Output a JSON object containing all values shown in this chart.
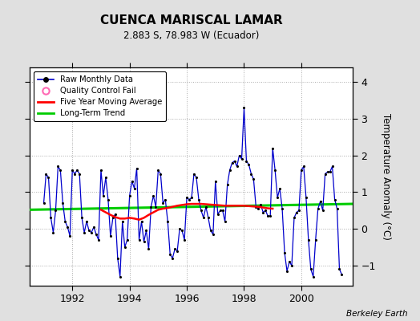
{
  "title": "CUENCA MARISCAL LAMAR",
  "subtitle": "2.883 S, 78.983 W (Ecuador)",
  "ylabel": "Temperature Anomaly (°C)",
  "credit": "Berkeley Earth",
  "bg_color": "#e0e0e0",
  "plot_bg_color": "#ffffff",
  "xlim": [
    1990.5,
    2001.8
  ],
  "ylim": [
    -1.55,
    4.4
  ],
  "yticks": [
    -1,
    0,
    1,
    2,
    3,
    4
  ],
  "xticks": [
    1992,
    1994,
    1996,
    1998,
    2000
  ],
  "raw_x": [
    1991.0,
    1991.083,
    1991.167,
    1991.25,
    1991.333,
    1991.417,
    1991.5,
    1991.583,
    1991.667,
    1991.75,
    1991.833,
    1991.917,
    1992.0,
    1992.083,
    1992.167,
    1992.25,
    1992.333,
    1992.417,
    1992.5,
    1992.583,
    1992.667,
    1992.75,
    1992.833,
    1992.917,
    1993.0,
    1993.083,
    1993.167,
    1993.25,
    1993.333,
    1993.417,
    1993.5,
    1993.583,
    1993.667,
    1993.75,
    1993.833,
    1993.917,
    1994.0,
    1994.083,
    1994.167,
    1994.25,
    1994.333,
    1994.417,
    1994.5,
    1994.583,
    1994.667,
    1994.75,
    1994.833,
    1994.917,
    1995.0,
    1995.083,
    1995.167,
    1995.25,
    1995.333,
    1995.417,
    1995.5,
    1995.583,
    1995.667,
    1995.75,
    1995.833,
    1995.917,
    1996.0,
    1996.083,
    1996.167,
    1996.25,
    1996.333,
    1996.417,
    1996.5,
    1996.583,
    1996.667,
    1996.75,
    1996.833,
    1996.917,
    1997.0,
    1997.083,
    1997.167,
    1997.25,
    1997.333,
    1997.417,
    1997.5,
    1997.583,
    1997.667,
    1997.75,
    1997.833,
    1997.917,
    1998.0,
    1998.083,
    1998.167,
    1998.25,
    1998.333,
    1998.417,
    1998.5,
    1998.583,
    1998.667,
    1998.75,
    1998.833,
    1998.917,
    1999.0,
    1999.083,
    1999.167,
    1999.25,
    1999.333,
    1999.417,
    1999.5,
    1999.583,
    1999.667,
    1999.75,
    1999.833,
    1999.917,
    2000.0,
    2000.083,
    2000.167,
    2000.25,
    2000.333,
    2000.417,
    2000.5,
    2000.583,
    2000.667,
    2000.75,
    2000.833,
    2000.917,
    2001.0,
    2001.083,
    2001.167,
    2001.25,
    2001.333,
    2001.417
  ],
  "raw_y": [
    0.7,
    1.5,
    1.4,
    0.3,
    -0.1,
    0.5,
    1.7,
    1.6,
    0.7,
    0.2,
    0.05,
    -0.2,
    1.6,
    1.5,
    1.6,
    1.5,
    0.3,
    -0.1,
    0.2,
    -0.05,
    -0.1,
    0.05,
    -0.15,
    -0.3,
    1.6,
    0.9,
    1.4,
    0.8,
    -0.2,
    0.3,
    0.4,
    -0.8,
    -1.3,
    0.2,
    -0.5,
    -0.3,
    0.9,
    1.3,
    1.1,
    1.65,
    -0.3,
    0.2,
    -0.35,
    -0.05,
    -0.55,
    0.6,
    0.9,
    0.6,
    1.6,
    1.5,
    0.7,
    0.8,
    0.2,
    -0.7,
    -0.8,
    -0.55,
    -0.6,
    0.0,
    -0.05,
    -0.3,
    0.85,
    0.8,
    0.85,
    1.5,
    1.4,
    0.8,
    0.5,
    0.3,
    0.6,
    0.3,
    -0.05,
    -0.15,
    1.3,
    0.4,
    0.5,
    0.5,
    0.2,
    1.2,
    1.6,
    1.8,
    1.85,
    1.7,
    2.0,
    1.9,
    3.3,
    1.85,
    1.75,
    1.5,
    1.35,
    0.6,
    0.55,
    0.65,
    0.45,
    0.5,
    0.35,
    0.35,
    2.2,
    1.6,
    0.85,
    1.1,
    0.55,
    -0.65,
    -1.15,
    -0.9,
    -1.0,
    0.3,
    0.45,
    0.5,
    1.6,
    1.7,
    0.85,
    -0.3,
    -1.1,
    -1.3,
    -0.3,
    0.55,
    0.75,
    0.5,
    1.5,
    1.55,
    1.55,
    1.7,
    0.8,
    0.55,
    -1.1,
    -1.25
  ],
  "ma_x": [
    1993.0,
    1993.167,
    1993.333,
    1993.5,
    1993.667,
    1993.833,
    1994.0,
    1994.167,
    1994.333,
    1994.5,
    1994.667,
    1994.833,
    1995.0,
    1995.167,
    1995.333,
    1995.5,
    1995.667,
    1995.833,
    1996.0,
    1996.167,
    1996.333,
    1996.5,
    1996.667,
    1996.833,
    1997.0,
    1997.167,
    1997.333,
    1997.5,
    1997.667,
    1997.833,
    1998.0,
    1998.167,
    1998.333,
    1998.5,
    1998.667,
    1998.833,
    1999.0
  ],
  "ma_y": [
    0.52,
    0.45,
    0.38,
    0.32,
    0.28,
    0.28,
    0.3,
    0.28,
    0.25,
    0.3,
    0.38,
    0.45,
    0.52,
    0.55,
    0.57,
    0.6,
    0.63,
    0.65,
    0.67,
    0.68,
    0.68,
    0.68,
    0.67,
    0.66,
    0.65,
    0.64,
    0.63,
    0.63,
    0.63,
    0.63,
    0.63,
    0.62,
    0.61,
    0.6,
    0.58,
    0.56,
    0.55
  ],
  "trend_x": [
    1990.5,
    2001.8
  ],
  "trend_y": [
    0.52,
    0.68
  ],
  "line_color": "#0000cc",
  "dot_color": "#000000",
  "ma_color": "#ff0000",
  "trend_color": "#00cc00",
  "qc_color": "#ff69b4"
}
